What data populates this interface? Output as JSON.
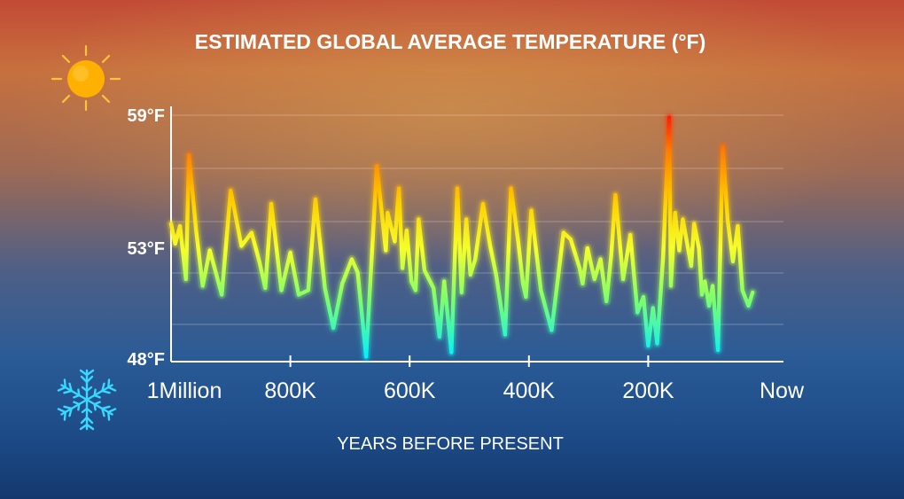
{
  "chart_data": {
    "type": "line",
    "title": "ESTIMATED GLOBAL AVERAGE TEMPERATURE (°F)",
    "xlabel": "YEARS BEFORE PRESENT",
    "ylabel": "",
    "x_tick_labels": [
      "1Million",
      "800K",
      "600K",
      "400K",
      "200K",
      "Now"
    ],
    "x_tick_values": [
      1000,
      800,
      600,
      400,
      200,
      0
    ],
    "y_tick_labels": [
      "59°F",
      "53°F",
      "48°F"
    ],
    "y_tick_values": [
      59,
      53,
      48
    ],
    "xlim": [
      1000,
      0
    ],
    "ylim": [
      48,
      59
    ],
    "grid": true,
    "series": [
      {
        "x": [
          1000,
          993,
          985,
          975,
          970,
          958,
          947,
          935,
          925,
          915,
          900,
          882,
          865,
          852,
          842,
          832,
          815,
          800,
          786,
          770,
          758,
          742,
          728,
          713,
          697,
          687,
          673,
          655,
          640,
          637,
          625,
          618,
          612,
          605,
          597,
          590,
          585,
          575,
          560,
          550,
          542,
          530,
          520,
          513,
          505,
          498,
          490,
          477,
          465,
          455,
          440,
          430,
          418,
          410,
          405,
          396,
          380,
          362,
          342,
          330,
          315,
          310,
          302,
          290,
          280,
          270,
          262,
          255,
          242,
          230,
          218,
          208,
          200,
          192,
          185,
          175,
          165,
          162,
          155,
          148,
          142,
          128,
          123,
          115,
          110,
          105,
          98,
          92,
          83,
          75,
          67,
          58,
          50,
          42,
          32,
          25
        ],
        "values": [
          54.1,
          53.2,
          54.0,
          51.6,
          57.2,
          53.8,
          51.3,
          52.9,
          51.9,
          50.9,
          55.6,
          53.1,
          53.7,
          52.4,
          51.2,
          55.0,
          51.1,
          52.8,
          50.9,
          51.1,
          55.2,
          51.2,
          49.4,
          51.4,
          52.5,
          51.9,
          48.1,
          56.7,
          52.9,
          54.6,
          53.3,
          55.7,
          52.1,
          53.8,
          51.5,
          51.1,
          54.3,
          52.0,
          51.2,
          49.0,
          51.5,
          48.3,
          55.7,
          51.0,
          54.3,
          51.8,
          52.5,
          55.0,
          53.1,
          51.8,
          49.1,
          55.7,
          53.3,
          51.4,
          50.8,
          54.7,
          51.1,
          49.3,
          53.7,
          53.4,
          52.1,
          51.4,
          53.0,
          51.6,
          52.5,
          50.6,
          52.7,
          55.4,
          51.6,
          53.6,
          50.1,
          50.8,
          48.6,
          50.3,
          48.7,
          52.6,
          58.9,
          51.3,
          54.6,
          52.9,
          54.3,
          52.2,
          54.1,
          53.0,
          50.9,
          51.5,
          50.4,
          51.3,
          48.4,
          57.6,
          54.3,
          52.4,
          54.0,
          51.1,
          50.4,
          51.0
        ],
        "x_note": "",
        "values_note": ""
      }
    ],
    "line_gradient": [
      "#ff1a00",
      "#ff7a00",
      "#ffd000",
      "#f4ff2a",
      "#7fff6a",
      "#00f0ff"
    ]
  },
  "icons": {
    "top_left": "sun-icon",
    "bottom_left": "snowflake-icon"
  },
  "colors": {
    "sun": "#ffb000",
    "sun_rays": "#ffc43a",
    "snowflake": "#38d8ff",
    "text": "#ffffff"
  }
}
